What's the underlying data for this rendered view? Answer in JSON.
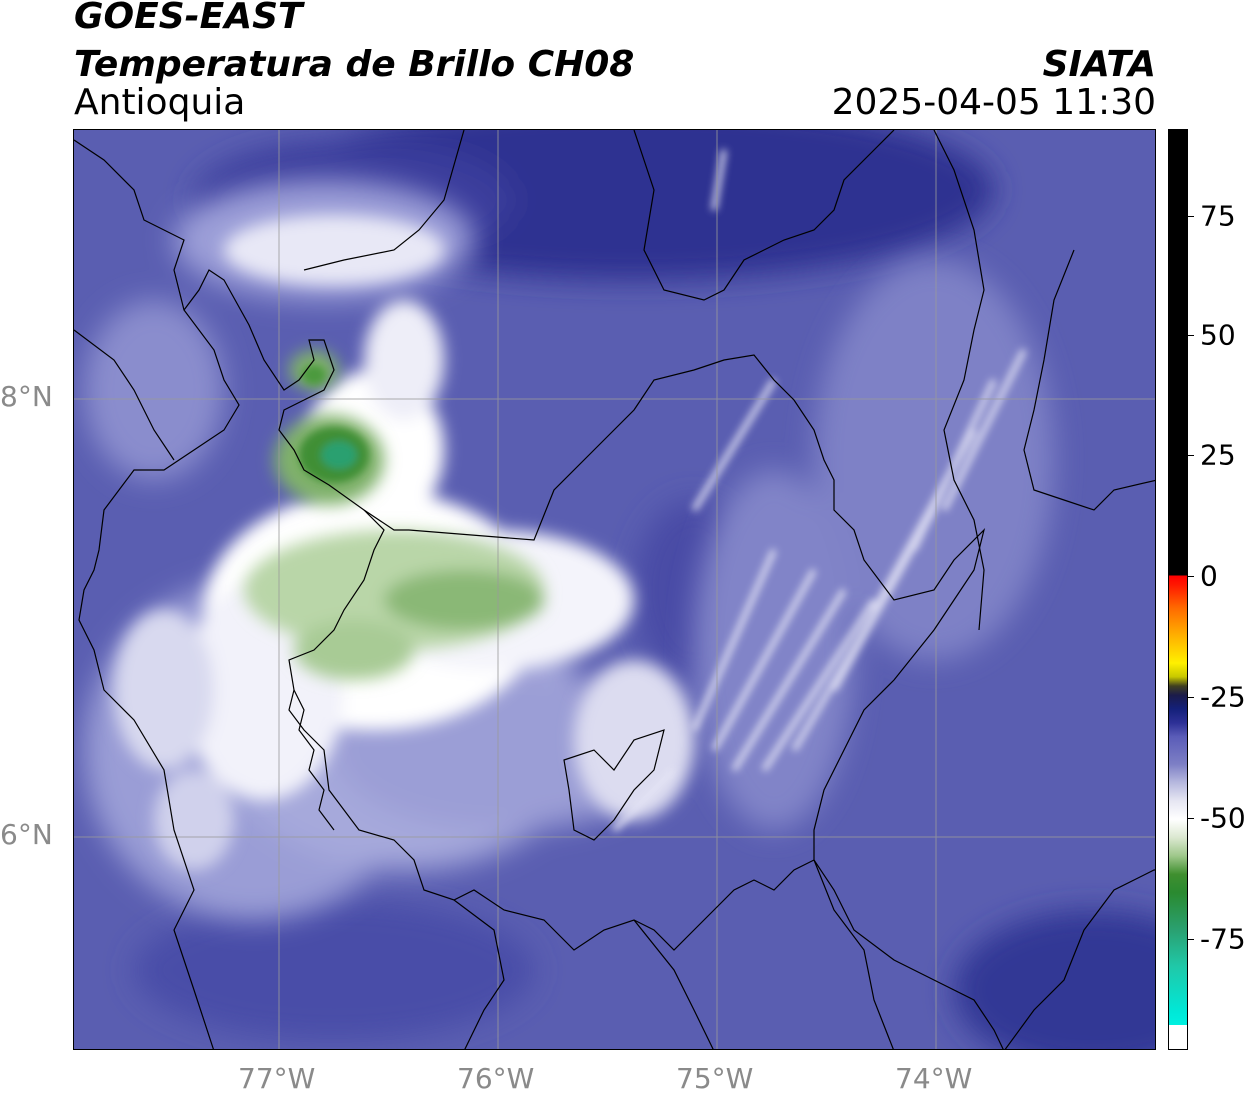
{
  "header": {
    "satellite": "GOES-EAST",
    "product": "Temperatura de Brillo CH08",
    "region": "Antioquia",
    "agency": "SIATA",
    "datetime": "2025-04-05 11:30"
  },
  "axes": {
    "x_ticks": [
      {
        "label": "77°W",
        "lon": -77
      },
      {
        "label": "76°W",
        "lon": -76
      },
      {
        "label": "75°W",
        "lon": -75
      },
      {
        "label": "74°W",
        "lon": -74
      }
    ],
    "y_ticks": [
      {
        "label": "8°N",
        "lat": 8
      },
      {
        "label": "6°N",
        "lat": 6
      }
    ],
    "lon_range": [
      -77.94,
      -73.0
    ],
    "lat_range": [
      5.02,
      9.23
    ],
    "grid": true
  },
  "colorbar": {
    "range": [
      -95,
      92
    ],
    "ticks": [
      {
        "label": "75",
        "value": 75
      },
      {
        "label": "50",
        "value": 50
      },
      {
        "label": "25",
        "value": 25
      },
      {
        "label": "0",
        "value": 0
      },
      {
        "label": "-25",
        "value": -25
      },
      {
        "label": "-50",
        "value": -50
      },
      {
        "label": "-75",
        "value": -75
      }
    ]
  },
  "colors": {
    "background_field": "#5b5fb0",
    "cold_highlight": "#ffffff",
    "very_cold": "#2a8a3a",
    "grid": "#9a9a9a",
    "borders": "#000000"
  }
}
